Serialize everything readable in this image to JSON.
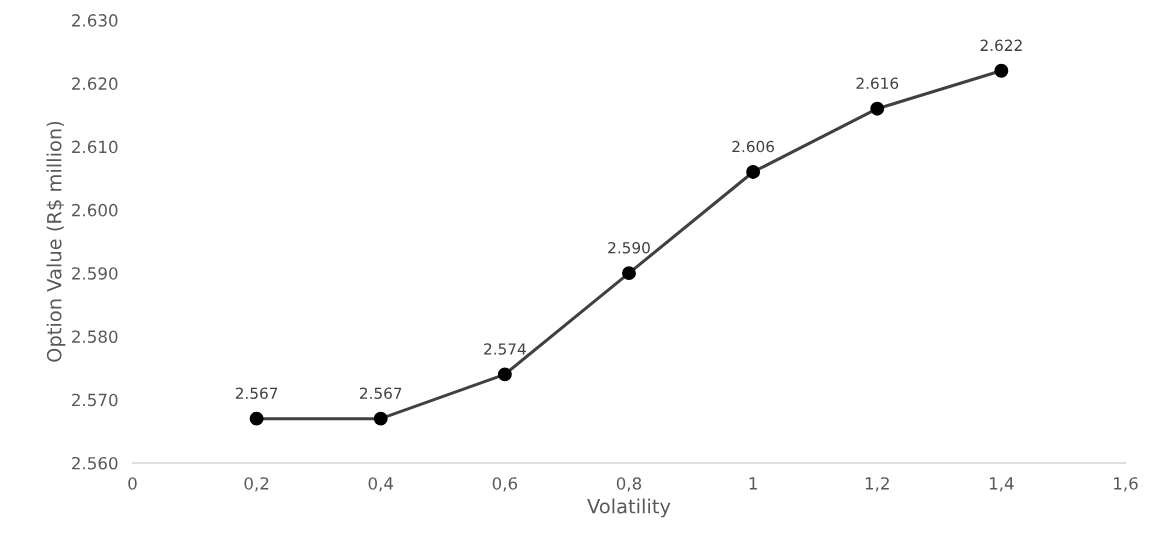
{
  "chart_data": {
    "type": "line",
    "xlabel": "Volatility",
    "ylabel": "Option Value (R$ million)",
    "x": [
      0.2,
      0.4,
      0.6,
      0.8,
      1,
      1.2,
      1.4
    ],
    "series": [
      {
        "color": "#404040",
        "values": [
          2567,
          2567,
          2574,
          2590,
          2606,
          2616,
          2622
        ],
        "value_labels": [
          "2.567",
          "2.567",
          "2.574",
          "2.590",
          "2.606",
          "2.616",
          "2.622"
        ]
      }
    ],
    "xlim": [
      0,
      1.6
    ],
    "xticks": [
      0,
      {
        "value": 0.2,
        "label": "0,2"
      },
      {
        "value": 0.4,
        "label": "0,4"
      },
      {
        "value": 0.6,
        "label": "0,6"
      },
      {
        "value": 0.8,
        "label": "0,8"
      },
      1,
      {
        "value": 1.2,
        "label": "1,2"
      },
      {
        "value": 1.4,
        "label": "1,4"
      },
      {
        "value": 1.6,
        "label": "1,6"
      }
    ],
    "ylim": [
      2560,
      2630
    ],
    "yticks": [
      {
        "value": 2560,
        "label": "2.560"
      },
      {
        "value": 2570,
        "label": "2.570"
      },
      {
        "value": 2580,
        "label": "2.580"
      },
      {
        "value": 2590,
        "label": "2.590"
      },
      {
        "value": 2600,
        "label": "2.600"
      },
      {
        "value": 2610,
        "label": "2.610"
      },
      {
        "value": 2620,
        "label": "2.620"
      },
      {
        "value": 2630,
        "label": "2.630"
      }
    ],
    "marker": "circle",
    "line_style": "solid",
    "grid": false,
    "legend": false
  }
}
